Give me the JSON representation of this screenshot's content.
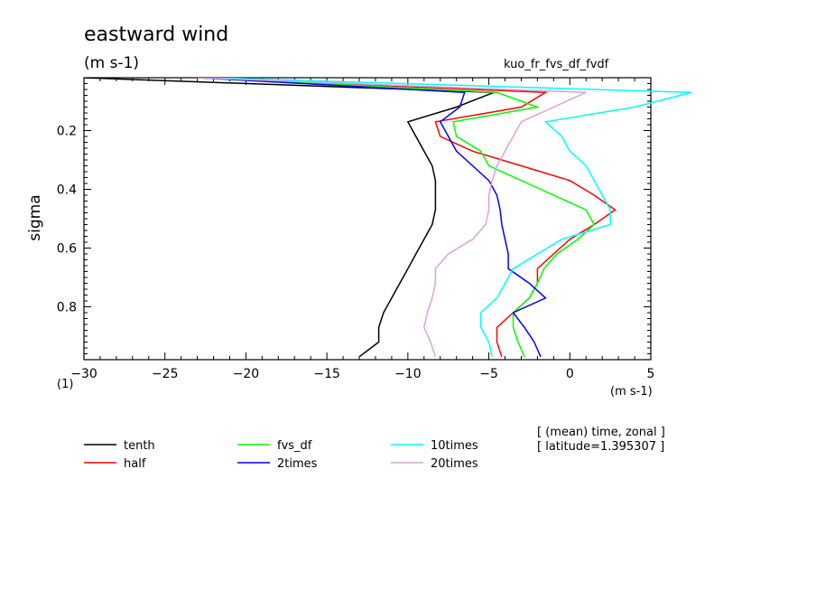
{
  "chart_data": {
    "type": "line",
    "title": "eastward wind",
    "title_units": "(m s-1)",
    "experiment": "kuo_fr_fvs_df_fvdf",
    "xlabel": "(m s-1)",
    "ylabel": "sigma",
    "y_axis_corner_label": "(1)",
    "xlim": [
      -30,
      5
    ],
    "ylim": [
      0.02,
      0.98
    ],
    "y_inverted": true,
    "xticks": [
      -30,
      -25,
      -20,
      -15,
      -10,
      -5,
      0,
      5
    ],
    "xtick_labels": [
      "−30",
      "−25",
      "−20",
      "−15",
      "−10",
      "−5",
      "0",
      "5"
    ],
    "yticks": [
      0.2,
      0.4,
      0.6,
      0.8
    ],
    "ytick_labels": [
      "0.2",
      "0.4",
      "0.6",
      "0.8"
    ],
    "info_lines": [
      "[ (mean) time, zonal ]",
      "[ latitude=1.395307 ]"
    ],
    "legend_position": "bottom",
    "sigma": [
      0.02,
      0.07,
      0.12,
      0.17,
      0.22,
      0.27,
      0.32,
      0.37,
      0.42,
      0.47,
      0.52,
      0.57,
      0.62,
      0.67,
      0.72,
      0.77,
      0.82,
      0.87,
      0.92,
      0.97
    ],
    "series": [
      {
        "name": "tenth",
        "color": "#000000",
        "x": [
          -30.0,
          -4.7,
          -7.0,
          -10.0,
          -9.5,
          -9.0,
          -8.5,
          -8.3,
          -8.3,
          -8.3,
          -8.5,
          -9.0,
          -9.5,
          -10.0,
          -10.5,
          -11.0,
          -11.5,
          -11.8,
          -11.8,
          -13.0
        ]
      },
      {
        "name": "half",
        "color": "#ff0000",
        "x": [
          -23.0,
          -1.5,
          -3.0,
          -8.3,
          -8.0,
          -6.0,
          -3.0,
          0.0,
          1.5,
          2.8,
          1.5,
          0.0,
          -1.0,
          -2.0,
          -2.0,
          -2.5,
          -3.5,
          -4.5,
          -4.5,
          -4.2
        ]
      },
      {
        "name": "fvs_df",
        "color": "#00ff00",
        "x": [
          -22.5,
          -4.5,
          -2.0,
          -7.2,
          -7.0,
          -5.5,
          -5.0,
          -3.0,
          -1.0,
          1.0,
          1.5,
          0.5,
          -0.8,
          -1.6,
          -2.0,
          -2.5,
          -3.5,
          -3.5,
          -3.2,
          -2.8
        ]
      },
      {
        "name": "2times",
        "color": "#0000ff",
        "x": [
          -23.0,
          -6.5,
          -6.8,
          -8.0,
          -7.5,
          -7.0,
          -6.0,
          -5.0,
          -4.5,
          -4.3,
          -4.2,
          -4.0,
          -3.8,
          -3.8,
          -2.5,
          -1.5,
          -3.5,
          -2.8,
          -2.2,
          -1.8
        ]
      },
      {
        "name": "10times",
        "color": "#00ffff",
        "x": [
          -22.0,
          7.5,
          4.0,
          -1.5,
          -0.5,
          0.0,
          1.0,
          1.5,
          2.0,
          2.5,
          2.5,
          -0.5,
          -2.0,
          -3.5,
          -4.0,
          -4.5,
          -5.5,
          -5.5,
          -5.0,
          -4.8
        ]
      },
      {
        "name": "20times",
        "color": "#dda0dd",
        "x": [
          -23.0,
          1.0,
          -1.0,
          -3.0,
          -3.5,
          -4.0,
          -4.5,
          -4.8,
          -5.0,
          -5.0,
          -5.2,
          -6.0,
          -7.5,
          -8.3,
          -8.3,
          -8.5,
          -8.8,
          -9.0,
          -8.6,
          -8.3
        ]
      }
    ]
  }
}
